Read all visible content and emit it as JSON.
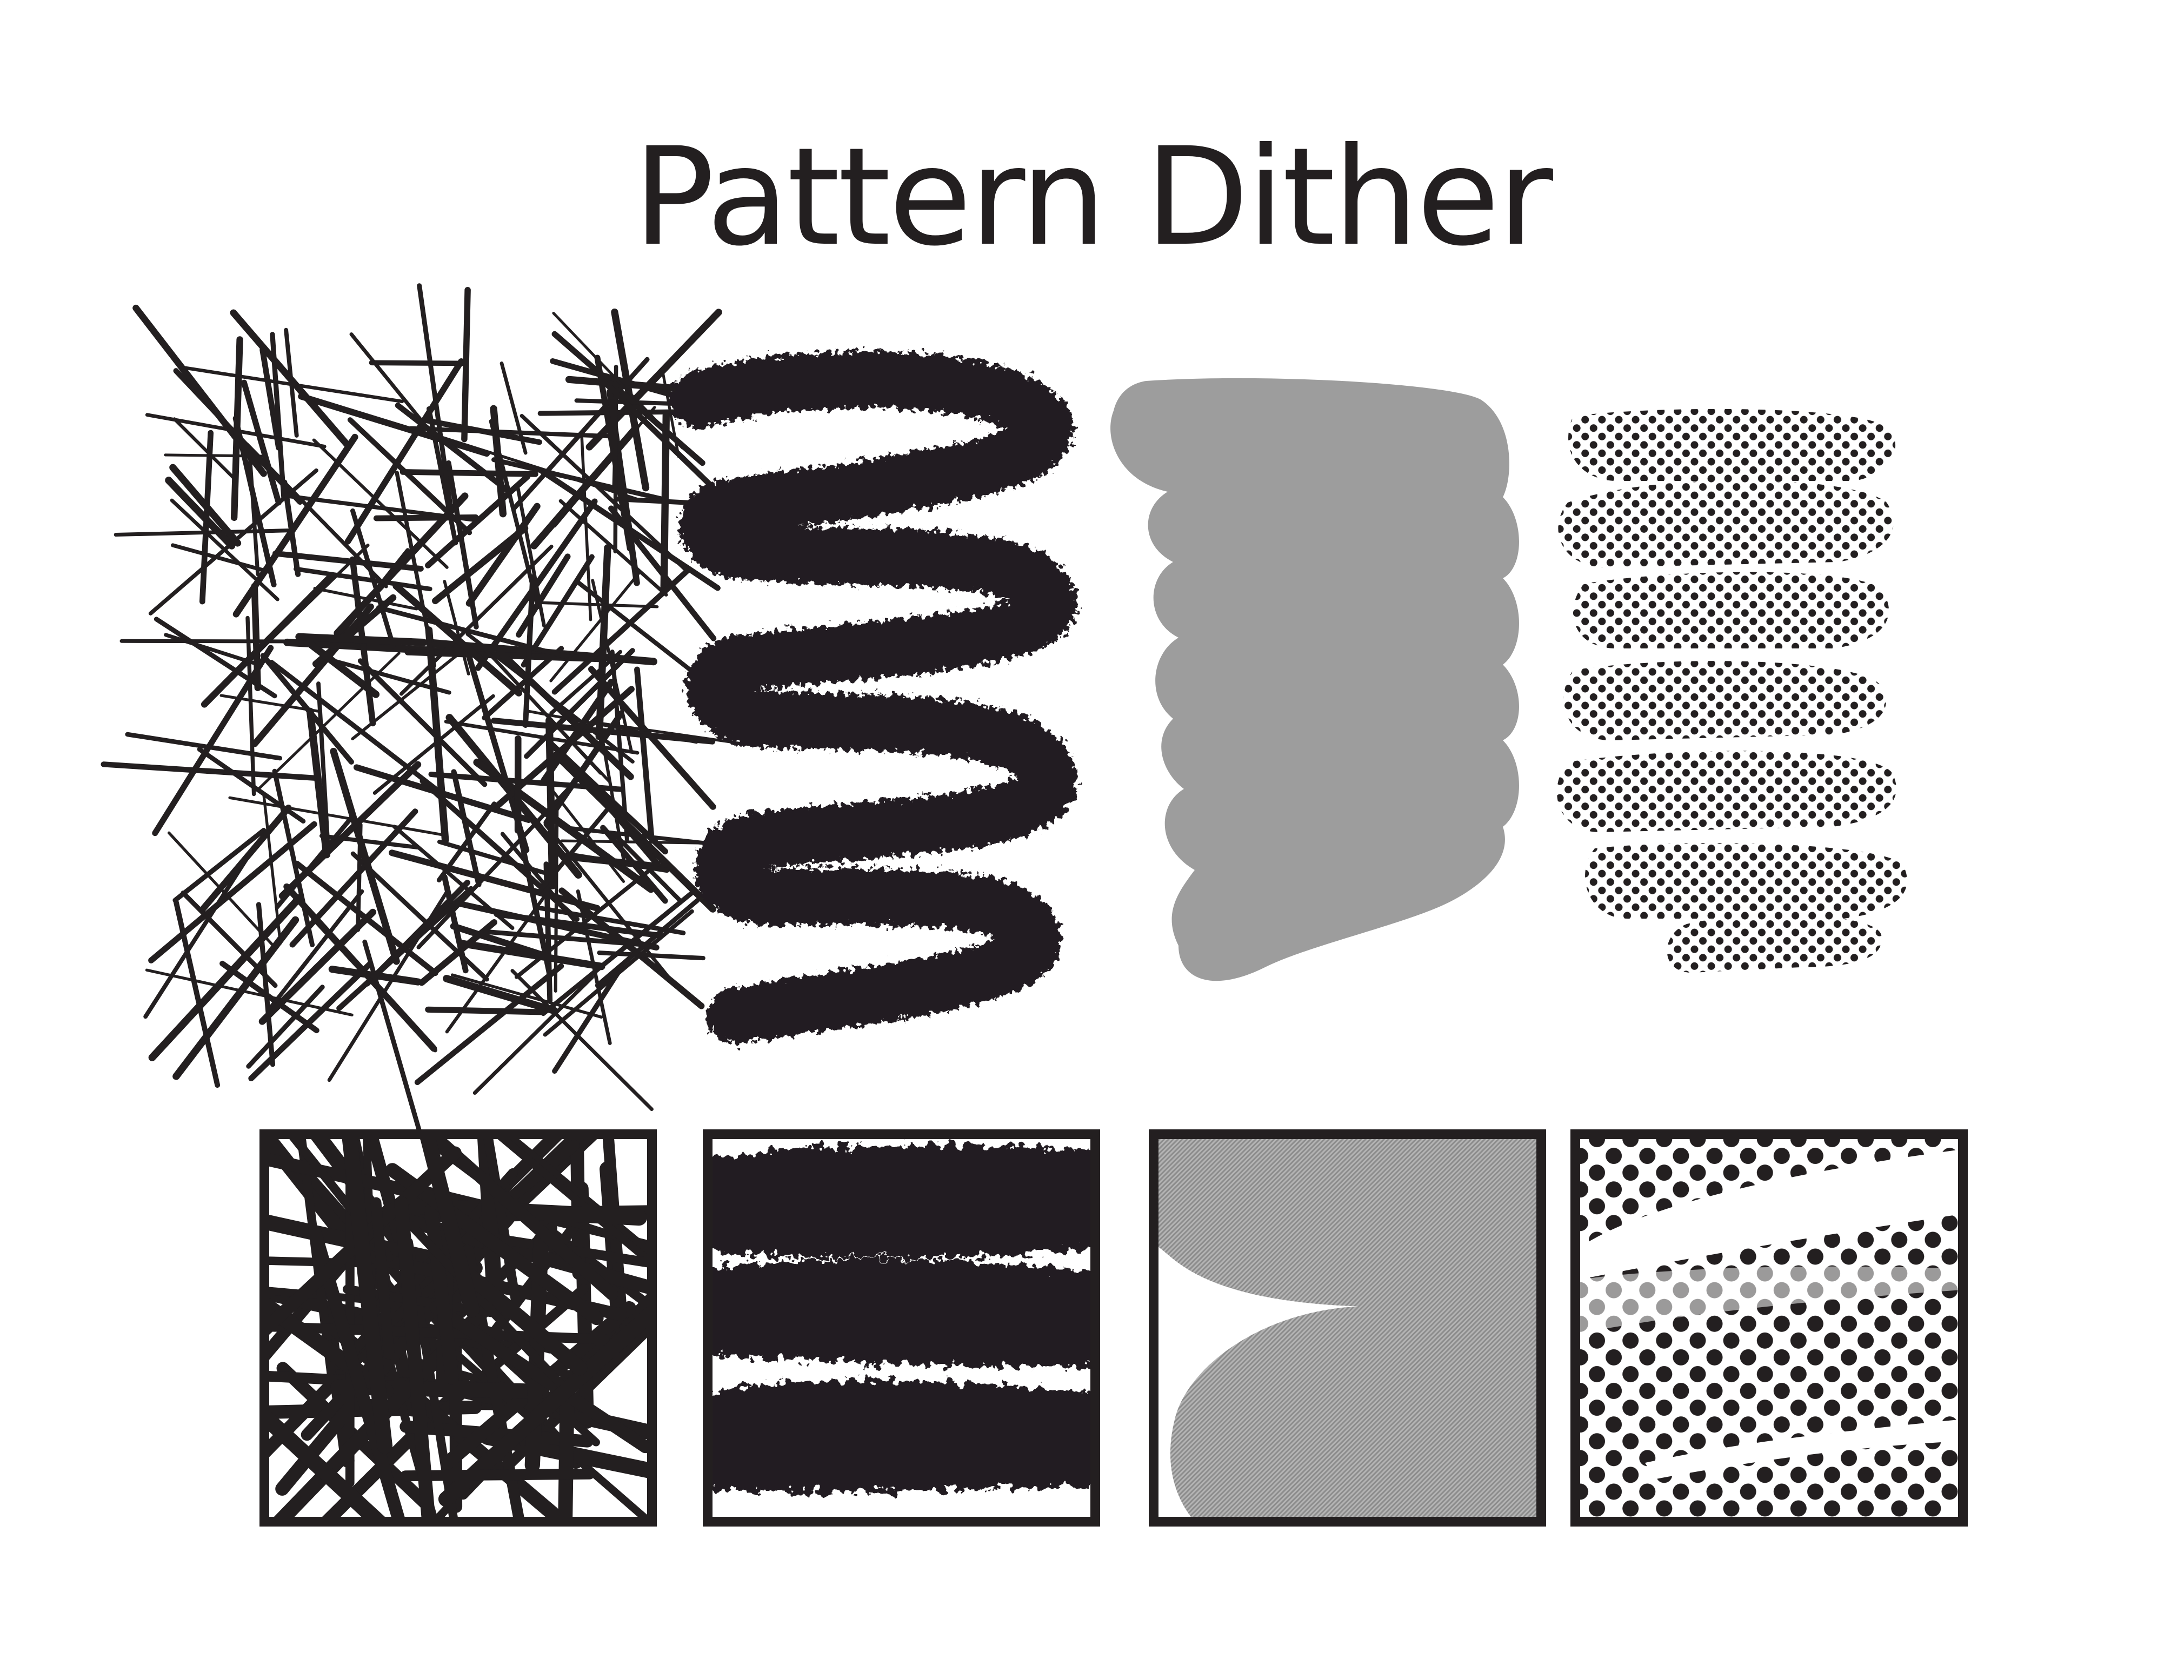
{
  "title": "Pattern Dither",
  "colors": {
    "ink": "#231f20",
    "gray": "#9d9d9d",
    "background": "#ffffff"
  },
  "brushes": [
    {
      "name": "crosshatch",
      "icon": "crosshatch-stroke"
    },
    {
      "name": "charcoal",
      "icon": "charcoal-zigzag-stroke"
    },
    {
      "name": "flat-gray",
      "icon": "gray-blob-stroke"
    },
    {
      "name": "halftone",
      "icon": "halftone-dot-stroke"
    }
  ]
}
